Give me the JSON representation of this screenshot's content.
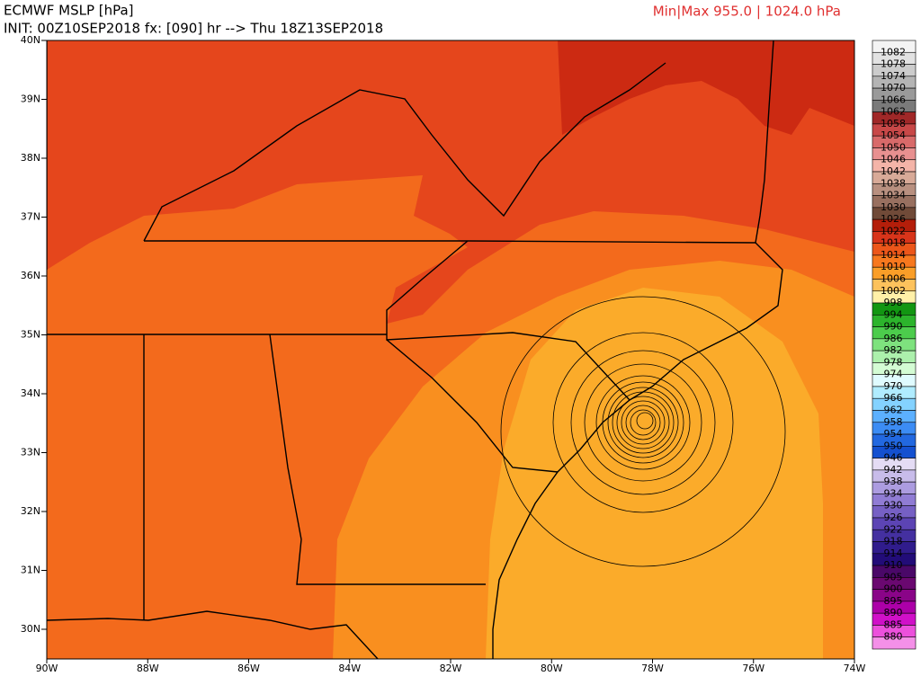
{
  "header": {
    "title": "ECMWF MSLP [hPa]",
    "init": "INIT: 00Z10SEP2018 fx: [090] hr --> Thu 18Z13SEP2018",
    "minmax": "Min|Max 955.0 | 1024.0 hPa"
  },
  "axes": {
    "lat_labels": [
      "40N",
      "39N",
      "38N",
      "37N",
      "36N",
      "35N",
      "34N",
      "33N",
      "32N",
      "31N",
      "30N"
    ],
    "lon_labels": [
      "90W",
      "88W",
      "86W",
      "84W",
      "82W",
      "80W",
      "78W",
      "76W",
      "74W"
    ]
  },
  "colorbar": {
    "labels": [
      "1082",
      "1078",
      "1074",
      "1070",
      "1066",
      "1062",
      "1058",
      "1054",
      "1050",
      "1046",
      "1042",
      "1038",
      "1034",
      "1030",
      "1026",
      "1022",
      "1018",
      "1014",
      "1010",
      "1006",
      "1002",
      "998",
      "994",
      "990",
      "986",
      "982",
      "978",
      "974",
      "970",
      "966",
      "962",
      "958",
      "954",
      "950",
      "946",
      "942",
      "938",
      "934",
      "930",
      "926",
      "922",
      "918",
      "914",
      "910",
      "905",
      "900",
      "895",
      "890",
      "885",
      "880"
    ],
    "colors": [
      "#f4f4f4",
      "#e2e2e2",
      "#cccccc",
      "#b4b4b4",
      "#9a9a9a",
      "#7a7a7a",
      "#a02828",
      "#c84848",
      "#d86a6a",
      "#e89090",
      "#f4b4a8",
      "#d8aa98",
      "#b89080",
      "#987060",
      "#704a38",
      "#b41e0a",
      "#d8341a",
      "#ec561a",
      "#f7781e",
      "#fa9e28",
      "#fdc25c",
      "#fff0a8",
      "#129612",
      "#2cb42c",
      "#4ccc4c",
      "#7ee27e",
      "#acf0ac",
      "#d4fcd4",
      "#e0fbff",
      "#b0ecff",
      "#84d2ff",
      "#5cb0ff",
      "#3c8cf4",
      "#2268e0",
      "#1450d0",
      "#e4dcf4",
      "#c8bcea",
      "#ac9ce0",
      "#907cd4",
      "#7660c4",
      "#5c44b4",
      "#4430a0",
      "#301c8c",
      "#220c78",
      "#4a0868",
      "#6a0870",
      "#8a0488",
      "#ac00a8",
      "#d010c8",
      "#ec50dc",
      "#f490e8"
    ]
  }
}
